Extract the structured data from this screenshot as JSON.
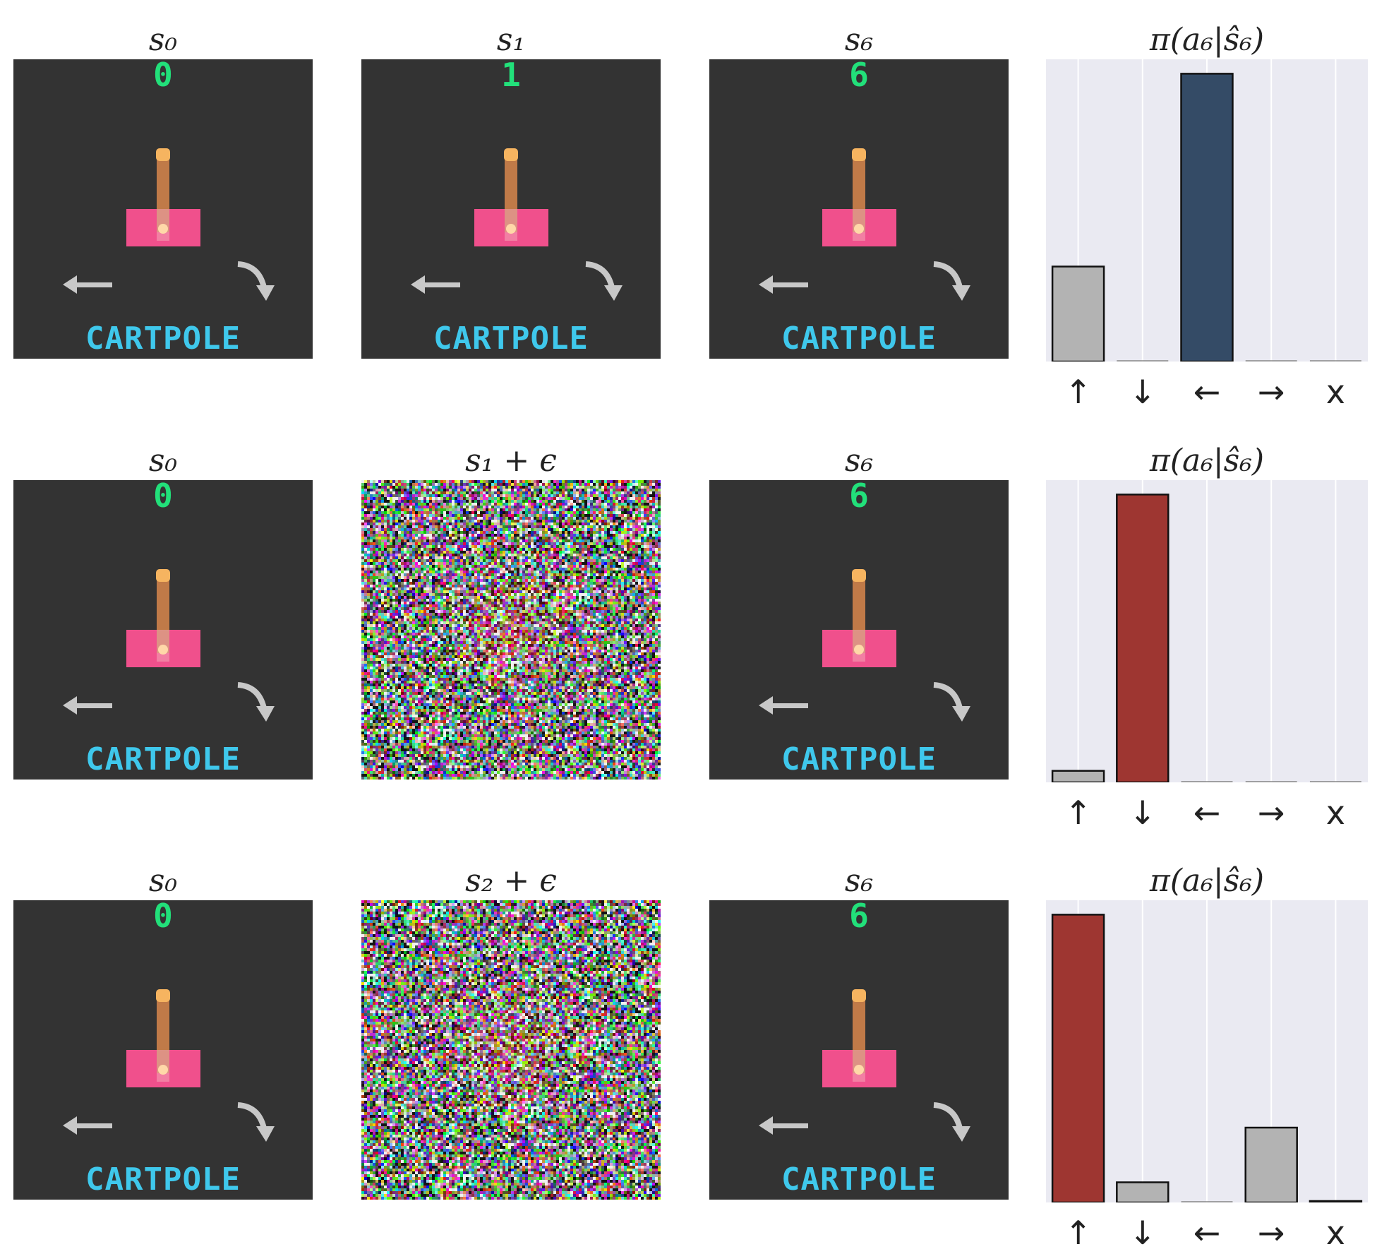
{
  "figure": {
    "rows": [
      {
        "frames": [
          {
            "title": "s₀",
            "kind": "game",
            "counter": "0",
            "label": "CARTPOLE"
          },
          {
            "title": "s₁",
            "kind": "game",
            "counter": "1",
            "label": "CARTPOLE"
          },
          {
            "title": "s₆",
            "kind": "game",
            "counter": "6",
            "label": "CARTPOLE"
          }
        ],
        "policy_title": "π(a₆|ŝ₆)"
      },
      {
        "frames": [
          {
            "title": "s₀",
            "kind": "game",
            "counter": "0",
            "label": "CARTPOLE"
          },
          {
            "title": "s₁ + ϵ",
            "kind": "noise"
          },
          {
            "title": "s₆",
            "kind": "game",
            "counter": "6",
            "label": "CARTPOLE"
          }
        ],
        "policy_title": "π(a₆|ŝ₆)"
      },
      {
        "frames": [
          {
            "title": "s₀",
            "kind": "game",
            "counter": "0",
            "label": "CARTPOLE"
          },
          {
            "title": "s₂ + ϵ",
            "kind": "noise"
          },
          {
            "title": "s₆",
            "kind": "game",
            "counter": "6",
            "label": "CARTPOLE"
          }
        ],
        "policy_title": "π(a₆|ŝ₆)"
      }
    ]
  },
  "chart_data": [
    {
      "type": "bar",
      "title": "π(a₆|ŝ₆)",
      "categories": [
        "↑",
        "↓",
        "←",
        "→",
        "x"
      ],
      "values": [
        0.33,
        0.0,
        1.0,
        0.0,
        0.0
      ],
      "colors": [
        "#b3b3b3",
        "#b3b3b3",
        "#344b66",
        "#b3b3b3",
        "#b3b3b3"
      ],
      "ylim": [
        0,
        1.05
      ],
      "grid": true
    },
    {
      "type": "bar",
      "title": "π(a₆|ŝ₆)",
      "categories": [
        "↑",
        "↓",
        "←",
        "→",
        "x"
      ],
      "values": [
        0.04,
        1.0,
        0.0,
        0.0,
        0.0
      ],
      "colors": [
        "#b3b3b3",
        "#9e3631",
        "#b3b3b3",
        "#b3b3b3",
        "#b3b3b3"
      ],
      "ylim": [
        0,
        1.05
      ],
      "grid": true
    },
    {
      "type": "bar",
      "title": "π(a₆|ŝ₆)",
      "categories": [
        "↑",
        "↓",
        "←",
        "→",
        "x"
      ],
      "values": [
        1.0,
        0.07,
        0.0,
        0.26,
        0.005
      ],
      "colors": [
        "#9e3631",
        "#b3b3b3",
        "#b3b3b3",
        "#b3b3b3",
        "#b3b3b3"
      ],
      "ylim": [
        0,
        1.05
      ],
      "grid": true
    }
  ],
  "colors": {
    "game_bg": "#333333",
    "counter": "#22e07a",
    "label": "#3fc8ec",
    "cart": "#f0508c",
    "pole": "#c07a48",
    "pole_tip": "#f6b460",
    "hinge": "#ffd8a8",
    "arrow": "#c8c8c8"
  }
}
